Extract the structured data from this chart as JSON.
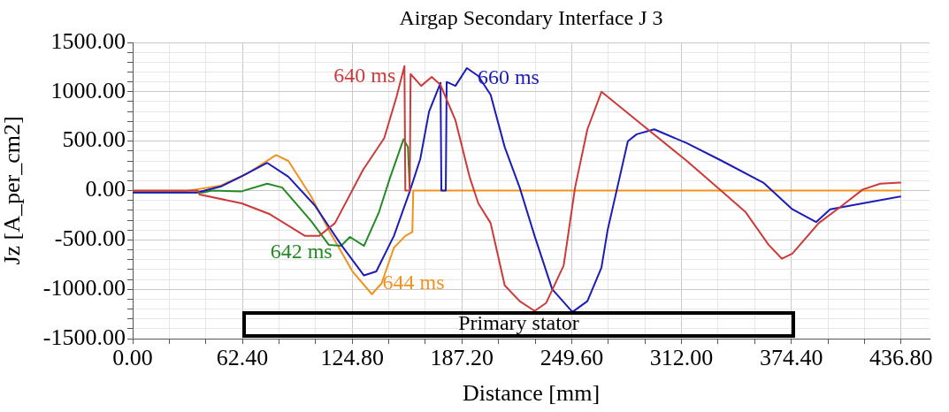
{
  "chart_data": {
    "type": "line",
    "title": "Airgap Secondary Interface J 3",
    "xlabel": "Distance [mm]",
    "ylabel": "Jz [A_per_cm2]",
    "xlim": [
      0,
      453
    ],
    "xticks": [
      {
        "value": 0,
        "label": "0.00"
      },
      {
        "value": 20.8,
        "label": null
      },
      {
        "value": 41.6,
        "label": null
      },
      {
        "value": 62.4,
        "label": "62.40"
      },
      {
        "value": 83.2,
        "label": null
      },
      {
        "value": 104,
        "label": null
      },
      {
        "value": 124.8,
        "label": "124.80"
      },
      {
        "value": 145.6,
        "label": null
      },
      {
        "value": 166.4,
        "label": null
      },
      {
        "value": 187.2,
        "label": "187.20"
      },
      {
        "value": 208,
        "label": null
      },
      {
        "value": 228.8,
        "label": null
      },
      {
        "value": 249.6,
        "label": "249.60"
      },
      {
        "value": 270.4,
        "label": null
      },
      {
        "value": 291.2,
        "label": null
      },
      {
        "value": 312,
        "label": "312.00"
      },
      {
        "value": 332.8,
        "label": null
      },
      {
        "value": 353.6,
        "label": null
      },
      {
        "value": 374.4,
        "label": "374.40"
      },
      {
        "value": 395.2,
        "label": null
      },
      {
        "value": 416,
        "label": null
      },
      {
        "value": 436.8,
        "label": "436.80"
      }
    ],
    "ylim": [
      -1500,
      1500
    ],
    "yticks": [
      {
        "value": -1500,
        "label": "-1500.00"
      },
      {
        "value": -1400,
        "label": null
      },
      {
        "value": -1300,
        "label": null
      },
      {
        "value": -1200,
        "label": null
      },
      {
        "value": -1100,
        "label": null
      },
      {
        "value": -1000,
        "label": "-1000.00"
      },
      {
        "value": -900,
        "label": null
      },
      {
        "value": -800,
        "label": null
      },
      {
        "value": -700,
        "label": null
      },
      {
        "value": -600,
        "label": null
      },
      {
        "value": -500,
        "label": "-500.00"
      },
      {
        "value": -400,
        "label": null
      },
      {
        "value": -300,
        "label": null
      },
      {
        "value": -200,
        "label": null
      },
      {
        "value": -100,
        "label": null
      },
      {
        "value": 0,
        "label": "0.00"
      },
      {
        "value": 100,
        "label": null
      },
      {
        "value": 200,
        "label": null
      },
      {
        "value": 300,
        "label": null
      },
      {
        "value": 400,
        "label": null
      },
      {
        "value": 500,
        "label": "500.00"
      },
      {
        "value": 600,
        "label": null
      },
      {
        "value": 700,
        "label": null
      },
      {
        "value": 800,
        "label": null
      },
      {
        "value": 900,
        "label": null
      },
      {
        "value": 1000,
        "label": "1000.00"
      },
      {
        "value": 1100,
        "label": null
      },
      {
        "value": 1200,
        "label": null
      },
      {
        "value": 1300,
        "label": null
      },
      {
        "value": 1400,
        "label": null
      },
      {
        "value": 1500,
        "label": "1500.00"
      }
    ],
    "grid": true,
    "legend": false,
    "marker": "none",
    "line_style": "solid",
    "annotations": [
      "Primary stator"
    ],
    "series": [
      {
        "name": "640 ms",
        "color": "#cc3a3a",
        "x": [
          0,
          37,
          38,
          62,
          78,
          98,
          106,
          115,
          131,
          143,
          150,
          154.5,
          155,
          157.5,
          158,
          164,
          170,
          175,
          183.5,
          191.5,
          196.5,
          203.5,
          211.5,
          220,
          228.5,
          235,
          245,
          251.5,
          258.5,
          266.5,
          290,
          315,
          335,
          348.5,
          361.5,
          369,
          375,
          390,
          403.5,
          415,
          425,
          436.8
        ],
        "values": [
          0,
          0,
          -40,
          -130,
          -240,
          -460,
          -460,
          -330,
          210,
          530,
          950,
          1260,
          0,
          0,
          1180,
          1060,
          1150,
          1070,
          710,
          140,
          -130,
          -330,
          -960,
          -1120,
          -1220,
          -1140,
          -760,
          30,
          620,
          1000,
          660,
          300,
          -10,
          -220,
          -550,
          -690,
          -640,
          -330,
          -150,
          10,
          70,
          80
        ]
      },
      {
        "name": "660 ms",
        "color": "#1c1cb8",
        "x": [
          0,
          36.5,
          50,
          61.5,
          76.5,
          88.5,
          103.5,
          118.5,
          131.5,
          138.5,
          148.5,
          157.5,
          163.5,
          168.5,
          175,
          175.5,
          178,
          178.5,
          183.5,
          190,
          196.5,
          203.5,
          211.5,
          220,
          228.5,
          238.5,
          250,
          258.5,
          266.5,
          270,
          275,
          281.5,
          286.5,
          296.5,
          315,
          335,
          358.5,
          375,
          388.5,
          396.5,
          415,
          436.8
        ],
        "values": [
          -20,
          -20,
          40,
          140,
          280,
          140,
          -150,
          -550,
          -860,
          -820,
          -460,
          -10,
          320,
          800,
          1090,
          0,
          0,
          1100,
          1060,
          1240,
          1160,
          970,
          440,
          30,
          -460,
          -1000,
          -1230,
          -1120,
          -780,
          -400,
          -10,
          500,
          570,
          620,
          480,
          300,
          80,
          -190,
          -320,
          -190,
          -130,
          -60
        ]
      },
      {
        "name": "642 ms",
        "color": "#248a24",
        "x": [
          0,
          40,
          45,
          61.5,
          76.5,
          85,
          101.5,
          111.5,
          118.5,
          123.5,
          131.5,
          140,
          146.5,
          154,
          156.5,
          157.5
        ],
        "values": [
          -20,
          -20,
          0,
          -10,
          70,
          30,
          -310,
          -550,
          -560,
          -470,
          -560,
          -220,
          140,
          520,
          440,
          10
        ]
      },
      {
        "name": "644 ms",
        "color": "#f0921e",
        "x": [
          0,
          28.5,
          50,
          65,
          81.5,
          88.5,
          101.5,
          111.5,
          125,
          136,
          141.5,
          148.5,
          155,
          159,
          159.5,
          436.8
        ],
        "values": [
          -10,
          -10,
          50,
          170,
          360,
          300,
          -60,
          -400,
          -820,
          -1050,
          -940,
          -580,
          -460,
          -420,
          0,
          0
        ]
      }
    ]
  }
}
